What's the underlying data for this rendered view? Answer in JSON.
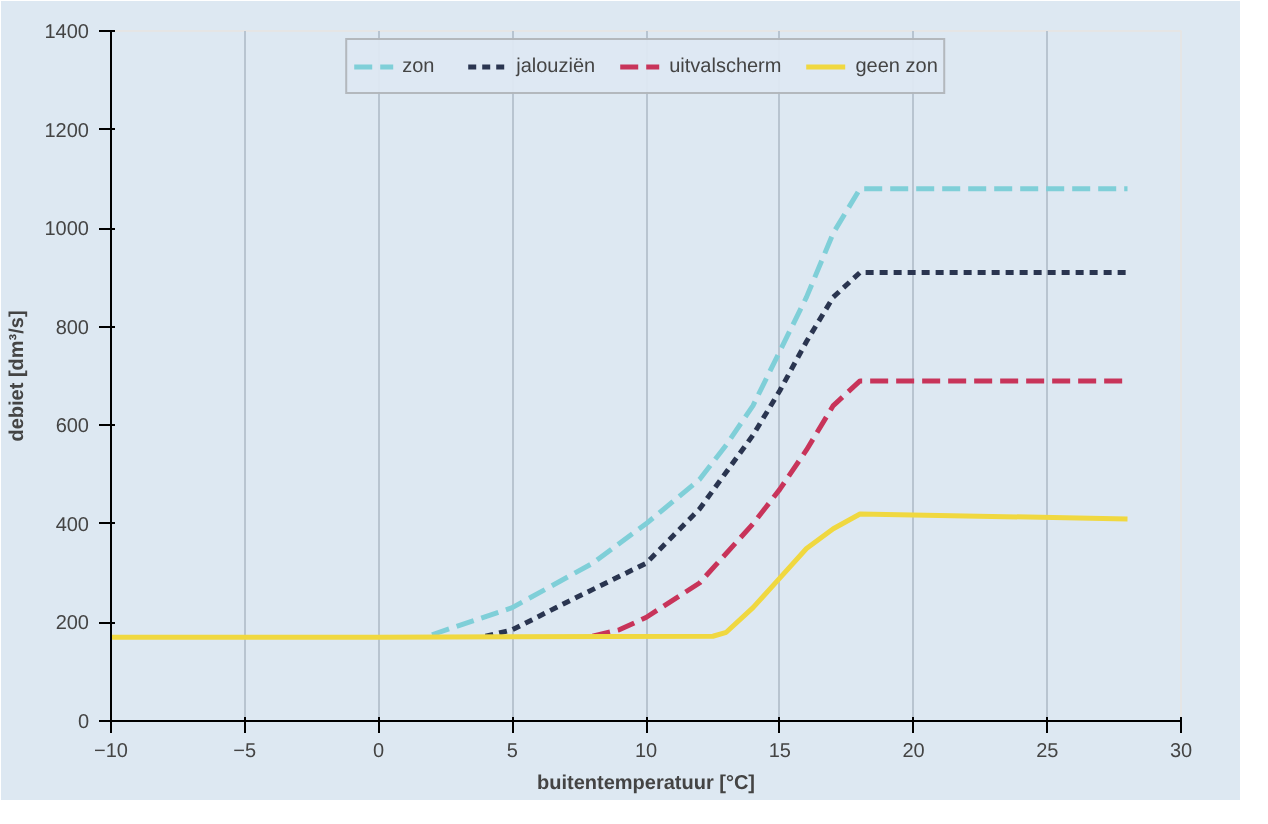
{
  "chart_data": {
    "type": "line",
    "xlabel": "buitentemperatuur [°C]",
    "ylabel": "debiet [dm³/s]",
    "xlim": [
      -10,
      30
    ],
    "xticks": [
      -10,
      -5,
      0,
      5,
      10,
      15,
      20,
      25,
      30
    ],
    "ylim": [
      0,
      1400
    ],
    "yticks": [
      0,
      200,
      400,
      600,
      800,
      1000,
      1200,
      1400
    ],
    "grid": "x",
    "legend": "top",
    "series": [
      {
        "name": "zon",
        "color": "#7fcfd8",
        "line_style": "dashed",
        "x": [
          2,
          5,
          8,
          10,
          12,
          13,
          14,
          15,
          16,
          17,
          18,
          28
        ],
        "values": [
          175,
          230,
          320,
          400,
          490,
          560,
          640,
          750,
          860,
          990,
          1080,
          1080
        ]
      },
      {
        "name": "jalouziën",
        "color": "#2a3550",
        "line_style": "dotted",
        "x": [
          4,
          5,
          7,
          10,
          12,
          14,
          15,
          16,
          17,
          18,
          28
        ],
        "values": [
          172,
          185,
          240,
          320,
          430,
          580,
          670,
          770,
          860,
          910,
          910
        ]
      },
      {
        "name": "uitvalscherm",
        "color": "#c8345a",
        "line_style": "dashed",
        "x": [
          8,
          9,
          10,
          12,
          14,
          15,
          16,
          17,
          18,
          28
        ],
        "values": [
          172,
          185,
          210,
          280,
          400,
          470,
          550,
          640,
          690,
          690
        ]
      },
      {
        "name": "geen zon",
        "color": "#f0d840",
        "line_style": "solid",
        "x": [
          -10,
          0,
          12.5,
          13,
          14,
          15,
          16,
          17,
          18,
          28
        ],
        "values": [
          170,
          170,
          172,
          180,
          230,
          290,
          350,
          390,
          420,
          410
        ]
      }
    ]
  }
}
